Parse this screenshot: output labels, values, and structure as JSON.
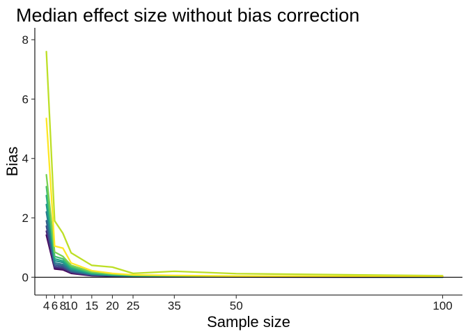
{
  "chart_data": {
    "type": "line",
    "title": "Median effect size without bias correction",
    "xlabel": "Sample size",
    "ylabel": "Bias",
    "x": [
      4,
      6,
      8,
      10,
      15,
      20,
      25,
      35,
      50,
      100
    ],
    "x_ticks": [
      4,
      6,
      8,
      10,
      15,
      20,
      25,
      35,
      50,
      100
    ],
    "x_tick_labels": [
      "4",
      "6",
      "8",
      "10",
      "15",
      "20",
      "25",
      "35",
      "50",
      "100"
    ],
    "y_ticks": [
      0,
      2,
      4,
      6,
      8
    ],
    "y_tick_labels": [
      "0",
      "2",
      "4",
      "6",
      "8"
    ],
    "xlim": [
      1.2,
      104.8
    ],
    "ylim": [
      -0.6,
      8.4
    ],
    "grid": false,
    "legend": "none",
    "reference_line_y": 0,
    "series": [
      {
        "color": "#440154",
        "values": [
          1.42,
          0.28,
          0.25,
          0.13,
          0.05,
          0.03,
          0.02,
          0.015,
          0.01,
          0.003
        ]
      },
      {
        "color": "#482475",
        "values": [
          1.55,
          0.32,
          0.28,
          0.15,
          0.06,
          0.04,
          0.025,
          0.02,
          0.012,
          0.004
        ]
      },
      {
        "color": "#414487",
        "values": [
          1.72,
          0.36,
          0.33,
          0.18,
          0.07,
          0.045,
          0.03,
          0.022,
          0.014,
          0.005
        ]
      },
      {
        "color": "#355f8d",
        "values": [
          1.9,
          0.42,
          0.38,
          0.2,
          0.08,
          0.05,
          0.033,
          0.024,
          0.016,
          0.006
        ]
      },
      {
        "color": "#2a788e",
        "values": [
          2.2,
          0.48,
          0.43,
          0.23,
          0.1,
          0.06,
          0.04,
          0.028,
          0.018,
          0.007
        ]
      },
      {
        "color": "#21918c",
        "values": [
          2.45,
          0.55,
          0.5,
          0.27,
          0.11,
          0.07,
          0.045,
          0.032,
          0.02,
          0.008
        ]
      },
      {
        "color": "#22a884",
        "values": [
          2.75,
          0.62,
          0.55,
          0.3,
          0.13,
          0.08,
          0.05,
          0.036,
          0.022,
          0.009
        ]
      },
      {
        "color": "#44bf70",
        "values": [
          3.05,
          0.7,
          0.62,
          0.35,
          0.15,
          0.09,
          0.06,
          0.04,
          0.025,
          0.01
        ]
      },
      {
        "color": "#7ad151",
        "values": [
          3.45,
          0.85,
          0.7,
          0.4,
          0.18,
          0.11,
          0.07,
          0.05,
          0.03,
          0.012
        ]
      },
      {
        "color": "#bddf26",
        "values": [
          7.6,
          1.9,
          1.48,
          0.82,
          0.4,
          0.34,
          0.13,
          0.2,
          0.12,
          0.05
        ]
      },
      {
        "color": "#fde725",
        "values": [
          5.35,
          1.05,
          0.98,
          0.48,
          0.22,
          0.13,
          0.08,
          0.06,
          0.04,
          0.02
        ]
      }
    ]
  }
}
